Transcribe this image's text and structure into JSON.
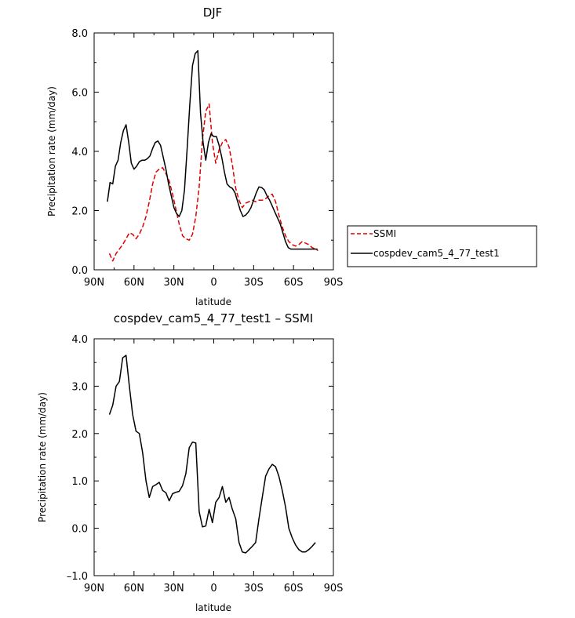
{
  "chart_data": [
    {
      "type": "line",
      "title": "DJF",
      "xlabel": "latitude",
      "ylabel": "Precipitation rate (mm/day)",
      "xlim": [
        90,
        -90
      ],
      "ylim": [
        0,
        8
      ],
      "x_ticks": [
        90,
        60,
        30,
        0,
        -30,
        -60,
        -90
      ],
      "x_tick_labels": [
        "90N",
        "60N",
        "30N",
        "0",
        "30S",
        "60S",
        "90S"
      ],
      "y_ticks": [
        0,
        2,
        4,
        6,
        8
      ],
      "y_tick_labels": [
        "0.0",
        "2.0",
        "4.0",
        "6.0",
        "8.0"
      ],
      "legend_position": "right, outside plot",
      "series": [
        {
          "name": "SSMI",
          "color": "#e00000",
          "dash": "dashed",
          "x": [
            78.5,
            76,
            73.5,
            71,
            68.5,
            66,
            63.5,
            61,
            58.5,
            56,
            53.5,
            51,
            48.5,
            46,
            43.5,
            41,
            38.5,
            36,
            33.5,
            31,
            28.5,
            26,
            23.5,
            21,
            18.5,
            16,
            13.5,
            11,
            8.5,
            6,
            3.5,
            1,
            -1.5,
            -4,
            -6.5,
            -9,
            -11.5,
            -14,
            -16.5,
            -19,
            -21.5,
            -24,
            -26.5,
            -29,
            -31.5,
            -34,
            -36.5,
            -39,
            -41.5,
            -44,
            -46.5,
            -49,
            -51.5,
            -54,
            -56.5,
            -59,
            -61.5,
            -64,
            -66.5,
            -69,
            -71.5,
            -74,
            -76.5,
            -78.5
          ],
          "values": [
            0.55,
            0.3,
            0.55,
            0.7,
            0.85,
            1.05,
            1.25,
            1.2,
            1.05,
            1.2,
            1.45,
            1.8,
            2.3,
            2.9,
            3.3,
            3.4,
            3.45,
            3.25,
            3.0,
            2.55,
            2.05,
            1.55,
            1.15,
            1.05,
            1.0,
            1.2,
            1.8,
            2.8,
            4.4,
            5.35,
            5.6,
            4.3,
            3.6,
            4.05,
            4.3,
            4.4,
            4.15,
            3.55,
            2.75,
            2.35,
            2.1,
            2.25,
            2.3,
            2.35,
            2.3,
            2.35,
            2.35,
            2.4,
            2.5,
            2.55,
            2.3,
            1.85,
            1.45,
            1.15,
            0.95,
            0.85,
            0.8,
            0.85,
            0.95,
            0.9,
            0.85,
            0.75,
            0.7,
            0.65
          ]
        },
        {
          "name": "cospdev_cam5_4_77_test1",
          "color": "#000000",
          "dash": "solid",
          "x": [
            80,
            78,
            76,
            74,
            72,
            70,
            68,
            66,
            64,
            62,
            60,
            58,
            56,
            54,
            52,
            50,
            48,
            46,
            44,
            42,
            40,
            38,
            36,
            34,
            32,
            30,
            28,
            26,
            24,
            22,
            20,
            18,
            16,
            14,
            12,
            10,
            8,
            6,
            4,
            2,
            0,
            -2,
            -4,
            -6,
            -8,
            -10,
            -12,
            -14,
            -16,
            -18,
            -20,
            -22,
            -24,
            -26,
            -28,
            -30,
            -32,
            -34,
            -36,
            -38,
            -40,
            -42,
            -44,
            -46,
            -48,
            -50,
            -52,
            -54,
            -56,
            -58,
            -60,
            -62,
            -64,
            -66,
            -68,
            -70,
            -72,
            -74,
            -76,
            -78
          ],
          "values": [
            2.3,
            2.95,
            2.9,
            3.5,
            3.7,
            4.3,
            4.7,
            4.9,
            4.3,
            3.6,
            3.4,
            3.5,
            3.65,
            3.7,
            3.7,
            3.75,
            3.85,
            4.1,
            4.3,
            4.35,
            4.2,
            3.8,
            3.4,
            2.9,
            2.5,
            2.1,
            1.9,
            1.8,
            2.0,
            2.7,
            4.1,
            5.6,
            6.9,
            7.3,
            7.4,
            5.3,
            4.3,
            3.7,
            4.3,
            4.6,
            4.5,
            4.5,
            4.2,
            3.8,
            3.3,
            2.9,
            2.8,
            2.75,
            2.6,
            2.3,
            2.0,
            1.8,
            1.85,
            1.95,
            2.1,
            2.35,
            2.6,
            2.8,
            2.78,
            2.7,
            2.5,
            2.35,
            2.15,
            1.95,
            1.75,
            1.55,
            1.25,
            0.95,
            0.75,
            0.7,
            0.7,
            0.7,
            0.7,
            0.7,
            0.7,
            0.7,
            0.7,
            0.7,
            0.7,
            0.7
          ]
        }
      ]
    },
    {
      "type": "line",
      "title": "cospdev_cam5_4_77_test1 – SSMI",
      "xlabel": "latitude",
      "ylabel": "Precipitation rate (mm/day)",
      "xlim": [
        90,
        -90
      ],
      "ylim": [
        -1,
        4
      ],
      "x_ticks": [
        90,
        60,
        30,
        0,
        -30,
        -60,
        -90
      ],
      "x_tick_labels": [
        "90N",
        "60N",
        "30N",
        "0",
        "30S",
        "60S",
        "90S"
      ],
      "y_ticks": [
        -1,
        0,
        1,
        2,
        3,
        4
      ],
      "y_tick_labels": [
        "–1.0",
        "0.0",
        "1.0",
        "2.0",
        "3.0",
        "4.0"
      ],
      "series": [
        {
          "color": "#000000",
          "dash": "solid",
          "x": [
            78.5,
            76,
            73.5,
            71,
            68.5,
            66,
            63.5,
            61,
            58.5,
            56,
            53.5,
            51,
            48.5,
            46,
            43.5,
            41,
            38.5,
            36,
            33.5,
            31,
            28.5,
            26,
            23.5,
            21,
            18.5,
            16,
            13.5,
            11,
            8.5,
            6,
            3.5,
            1,
            -1.5,
            -4,
            -6.5,
            -9,
            -11.5,
            -14,
            -16.5,
            -19,
            -21.5,
            -24,
            -26.5,
            -29,
            -31.5,
            -34,
            -36.5,
            -39,
            -41.5,
            -44,
            -46.5,
            -49,
            -51.5,
            -54,
            -56.5,
            -59,
            -61.5,
            -64,
            -66.5,
            -69,
            -71.5,
            -74,
            -76.5
          ],
          "values": [
            2.4,
            2.6,
            3.0,
            3.1,
            3.6,
            3.65,
            3.0,
            2.4,
            2.05,
            2.0,
            1.6,
            1.0,
            0.65,
            0.88,
            0.92,
            0.97,
            0.8,
            0.75,
            0.58,
            0.73,
            0.76,
            0.78,
            0.9,
            1.15,
            1.7,
            1.82,
            1.8,
            0.35,
            0.03,
            0.05,
            0.4,
            0.12,
            0.55,
            0.65,
            0.88,
            0.55,
            0.65,
            0.4,
            0.2,
            -0.3,
            -0.5,
            -0.52,
            -0.45,
            -0.38,
            -0.3,
            0.2,
            0.65,
            1.1,
            1.25,
            1.35,
            1.3,
            1.1,
            0.8,
            0.45,
            0.0,
            -0.2,
            -0.35,
            -0.45,
            -0.5,
            -0.5,
            -0.45,
            -0.38,
            -0.3
          ]
        }
      ]
    }
  ]
}
